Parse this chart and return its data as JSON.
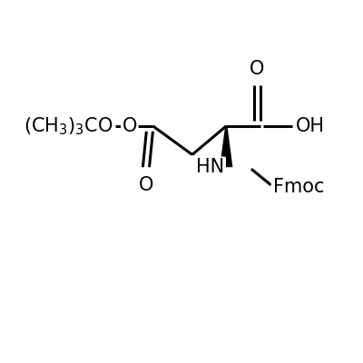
{
  "bg_color": "#ffffff",
  "fig_size": [
    4.0,
    4.0
  ],
  "dpi": 100,
  "tbu_text": "(CH₃)₃CO",
  "o_ester_label": "O",
  "o_carbonyl_label": "O",
  "o_carboxyl_label": "O",
  "oh_label": "OH",
  "hn_label": "HN",
  "fmoc_label": "Fmoc",
  "xlim": [
    0.0,
    1.0
  ],
  "ylim": [
    0.0,
    1.0
  ],
  "lw": 2.2,
  "wedge_color": "#000000",
  "text_color": "#000000",
  "fontsize": 15
}
